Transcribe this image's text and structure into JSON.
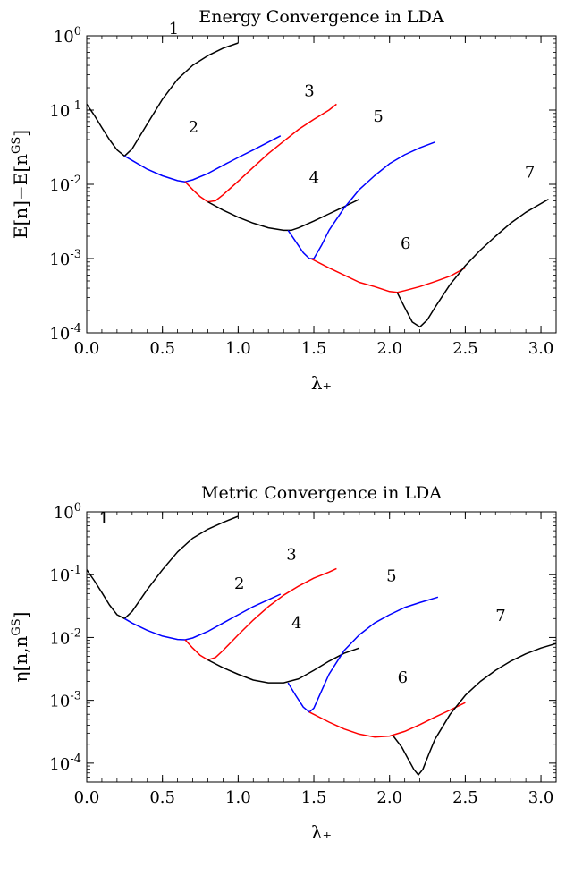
{
  "chart_data": [
    {
      "type": "line",
      "title": "Energy Convergence in LDA",
      "xlabel": "λ₊",
      "ylabel": "E[n]−E[n^GS]",
      "xlim": [
        0,
        3.1
      ],
      "ylim": [
        0.0001,
        1
      ],
      "yscale": "log",
      "xticks": [
        "0.0",
        "0.5",
        "1.0",
        "1.5",
        "2.0",
        "2.5",
        "3.0"
      ],
      "yticks": [
        "10^0",
        "10^-1",
        "10^-2",
        "10^-3",
        "10^-4"
      ],
      "grid": false,
      "legend": "none",
      "series": [
        {
          "name": "1",
          "color": "#000000",
          "x": [
            0.0,
            0.05,
            0.1,
            0.15,
            0.2,
            0.25,
            0.3,
            0.4,
            0.5,
            0.6,
            0.7,
            0.8,
            0.9,
            1.0
          ],
          "y": [
            0.12,
            0.085,
            0.058,
            0.04,
            0.029,
            0.024,
            0.03,
            0.065,
            0.14,
            0.26,
            0.4,
            0.54,
            0.68,
            0.8
          ]
        },
        {
          "name": "2",
          "color": "#0000ff",
          "x": [
            0.25,
            0.3,
            0.4,
            0.5,
            0.6,
            0.65,
            0.7,
            0.8,
            0.9,
            1.0,
            1.1,
            1.2,
            1.28
          ],
          "y": [
            0.024,
            0.021,
            0.016,
            0.013,
            0.0112,
            0.0108,
            0.0115,
            0.014,
            0.018,
            0.023,
            0.029,
            0.037,
            0.045
          ]
        },
        {
          "name": "3",
          "color": "#ff0000",
          "x": [
            0.65,
            0.7,
            0.75,
            0.8,
            0.85,
            0.9,
            1.0,
            1.1,
            1.2,
            1.3,
            1.4,
            1.5,
            1.6,
            1.65
          ],
          "y": [
            0.0108,
            0.0085,
            0.0068,
            0.0058,
            0.006,
            0.0072,
            0.011,
            0.017,
            0.026,
            0.038,
            0.055,
            0.075,
            0.1,
            0.12
          ]
        },
        {
          "name": "4",
          "color": "#000000",
          "x": [
            0.8,
            0.9,
            1.0,
            1.1,
            1.2,
            1.3,
            1.35,
            1.4,
            1.5,
            1.6,
            1.7,
            1.8
          ],
          "y": [
            0.0058,
            0.0045,
            0.0036,
            0.003,
            0.0026,
            0.0024,
            0.0024,
            0.0026,
            0.0032,
            0.004,
            0.005,
            0.0063
          ]
        },
        {
          "name": "5",
          "color": "#0000ff",
          "x": [
            1.33,
            1.38,
            1.43,
            1.47,
            1.5,
            1.55,
            1.6,
            1.7,
            1.8,
            1.9,
            2.0,
            2.1,
            2.2,
            2.3
          ],
          "y": [
            0.0024,
            0.0017,
            0.0012,
            0.001,
            0.001,
            0.0015,
            0.0024,
            0.0048,
            0.0085,
            0.013,
            0.019,
            0.025,
            0.031,
            0.037
          ]
        },
        {
          "name": "6",
          "color": "#ff0000",
          "x": [
            1.48,
            1.6,
            1.7,
            1.8,
            1.9,
            2.0,
            2.05,
            2.1,
            2.2,
            2.3,
            2.4,
            2.5
          ],
          "y": [
            0.001,
            0.00075,
            0.0006,
            0.00048,
            0.00042,
            0.00036,
            0.00035,
            0.00037,
            0.00042,
            0.00049,
            0.00058,
            0.00075
          ]
        },
        {
          "name": "7",
          "color": "#000000",
          "x": [
            2.05,
            2.1,
            2.15,
            2.2,
            2.25,
            2.3,
            2.4,
            2.5,
            2.6,
            2.7,
            2.8,
            2.9,
            3.0,
            3.05
          ],
          "y": [
            0.00035,
            0.00022,
            0.00014,
            0.00012,
            0.00015,
            0.00022,
            0.00045,
            0.0008,
            0.0013,
            0.002,
            0.003,
            0.0042,
            0.0055,
            0.0063
          ]
        }
      ]
    },
    {
      "type": "line",
      "title": "Metric Convergence in LDA",
      "xlabel": "λ₊",
      "ylabel": "η[n,n^GS]",
      "xlim": [
        0,
        3.1
      ],
      "ylim": [
        5e-05,
        1
      ],
      "yscale": "log",
      "xticks": [
        "0.0",
        "0.5",
        "1.0",
        "1.5",
        "2.0",
        "2.5",
        "3.0"
      ],
      "yticks": [
        "10^0",
        "10^-1",
        "10^-2",
        "10^-3",
        "10^-4"
      ],
      "grid": false,
      "legend": "none",
      "series": [
        {
          "name": "1",
          "color": "#000000",
          "x": [
            0.0,
            0.05,
            0.1,
            0.15,
            0.2,
            0.25,
            0.3,
            0.4,
            0.5,
            0.6,
            0.7,
            0.8,
            0.9,
            1.0
          ],
          "y": [
            0.12,
            0.08,
            0.052,
            0.033,
            0.023,
            0.02,
            0.026,
            0.058,
            0.12,
            0.23,
            0.38,
            0.53,
            0.68,
            0.85
          ]
        },
        {
          "name": "2",
          "color": "#0000ff",
          "x": [
            0.25,
            0.3,
            0.4,
            0.5,
            0.6,
            0.65,
            0.7,
            0.8,
            0.9,
            1.0,
            1.1,
            1.2,
            1.28
          ],
          "y": [
            0.02,
            0.017,
            0.013,
            0.0105,
            0.0093,
            0.0092,
            0.0098,
            0.0125,
            0.017,
            0.023,
            0.031,
            0.04,
            0.049
          ]
        },
        {
          "name": "3",
          "color": "#ff0000",
          "x": [
            0.65,
            0.7,
            0.75,
            0.8,
            0.85,
            0.9,
            1.0,
            1.1,
            1.2,
            1.3,
            1.4,
            1.5,
            1.6,
            1.65
          ],
          "y": [
            0.0092,
            0.0068,
            0.0052,
            0.0044,
            0.0048,
            0.0062,
            0.011,
            0.019,
            0.031,
            0.047,
            0.066,
            0.088,
            0.11,
            0.125
          ]
        },
        {
          "name": "4",
          "color": "#000000",
          "x": [
            0.8,
            0.9,
            1.0,
            1.1,
            1.2,
            1.3,
            1.4,
            1.5,
            1.6,
            1.7,
            1.8
          ],
          "y": [
            0.0044,
            0.0033,
            0.0026,
            0.0021,
            0.0019,
            0.0019,
            0.0022,
            0.003,
            0.0042,
            0.0056,
            0.0068
          ]
        },
        {
          "name": "5",
          "color": "#0000ff",
          "x": [
            1.33,
            1.38,
            1.43,
            1.47,
            1.5,
            1.55,
            1.6,
            1.7,
            1.8,
            1.9,
            2.0,
            2.1,
            2.2,
            2.32
          ],
          "y": [
            0.0019,
            0.0012,
            0.00078,
            0.00065,
            0.00075,
            0.0014,
            0.0026,
            0.0062,
            0.011,
            0.017,
            0.023,
            0.03,
            0.036,
            0.044
          ]
        },
        {
          "name": "6",
          "color": "#ff0000",
          "x": [
            1.47,
            1.6,
            1.7,
            1.8,
            1.9,
            2.0,
            2.1,
            2.2,
            2.3,
            2.4,
            2.5
          ],
          "y": [
            0.00065,
            0.00045,
            0.00035,
            0.00029,
            0.00026,
            0.00027,
            0.00032,
            0.00041,
            0.00054,
            0.0007,
            0.00092
          ]
        },
        {
          "name": "7",
          "color": "#000000",
          "x": [
            2.02,
            2.08,
            2.12,
            2.16,
            2.19,
            2.22,
            2.26,
            2.3,
            2.4,
            2.5,
            2.6,
            2.7,
            2.8,
            2.9,
            3.0,
            3.1
          ],
          "y": [
            0.00028,
            0.00018,
            0.00012,
            8e-05,
            6.5e-05,
            8e-05,
            0.00014,
            0.00024,
            0.0006,
            0.0012,
            0.002,
            0.003,
            0.0042,
            0.0055,
            0.0068,
            0.008
          ]
        }
      ]
    }
  ]
}
